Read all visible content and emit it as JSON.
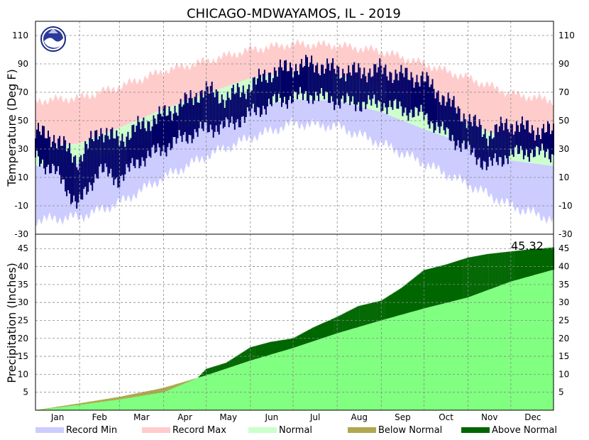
{
  "colors": {
    "record_min": "#ccccff",
    "record_max": "#ffcccc",
    "normal": "#ccffcc",
    "observed": "#000066",
    "precip_normal": "#80ff80",
    "below_normal": "#b0a850",
    "above_normal": "#006600"
  },
  "icons": {
    "logo": "noaa-logo-icon"
  },
  "chart_data": [
    {
      "type": "area",
      "title": "CHICAGO-MDWAYAMOS, IL - 2019",
      "ylabel": "Temperature (Deg F)",
      "ylim": [
        -30,
        120
      ],
      "yticks": [
        -30,
        -10,
        10,
        30,
        50,
        70,
        90,
        110
      ],
      "grid": true,
      "x_unit": "day_of_year",
      "xlim": [
        1,
        365
      ],
      "months": [
        "Jan",
        "Feb",
        "Mar",
        "Apr",
        "May",
        "Jun",
        "Jul",
        "Aug",
        "Sep",
        "Oct",
        "Nov",
        "Dec"
      ],
      "month_start_days": [
        1,
        32,
        60,
        91,
        121,
        152,
        182,
        213,
        244,
        274,
        305,
        335
      ],
      "series": [
        {
          "name": "Record Max",
          "x": [
            1,
            32,
            60,
            91,
            121,
            152,
            182,
            213,
            244,
            274,
            305,
            335,
            365
          ],
          "values": [
            64,
            66,
            74,
            85,
            92,
            100,
            104,
            103,
            99,
            90,
            80,
            69,
            64
          ]
        },
        {
          "name": "Record Min",
          "x": [
            1,
            32,
            60,
            91,
            121,
            152,
            182,
            213,
            244,
            274,
            305,
            335,
            365
          ],
          "values": [
            -20,
            -18,
            -8,
            10,
            25,
            38,
            48,
            46,
            34,
            20,
            5,
            -10,
            -20
          ]
        },
        {
          "name": "Normal",
          "high": {
            "x": [
              1,
              32,
              60,
              91,
              121,
              152,
              182,
              213,
              244,
              274,
              305,
              335,
              365
            ],
            "values": [
              31,
              34,
              45,
              58,
              69,
              80,
              84,
              82,
              75,
              62,
              48,
              36,
              31
            ]
          },
          "low": {
            "x": [
              1,
              32,
              60,
              91,
              121,
              152,
              182,
              213,
              244,
              274,
              305,
              335,
              365
            ],
            "values": [
              18,
              20,
              29,
              39,
              49,
              59,
              65,
              64,
              56,
              44,
              33,
              22,
              18
            ]
          }
        },
        {
          "name": "Observed",
          "high": {
            "x": [
              1,
              15,
              31,
              46,
              59,
              74,
              90,
              105,
              120,
              135,
              151,
              166,
              181,
              196,
              212,
              227,
              243,
              258,
              273,
              288,
              304,
              319,
              334,
              349,
              365
            ],
            "values": [
              42,
              38,
              22,
              44,
              36,
              46,
              54,
              62,
              72,
              66,
              74,
              84,
              88,
              90,
              86,
              84,
              86,
              82,
              80,
              66,
              52,
              40,
              48,
              44,
              42
            ]
          },
          "low": {
            "x": [
              1,
              15,
              31,
              46,
              59,
              74,
              90,
              105,
              120,
              135,
              151,
              166,
              181,
              196,
              212,
              227,
              243,
              258,
              273,
              288,
              304,
              319,
              334,
              349,
              365
            ],
            "values": [
              24,
              14,
              -10,
              16,
              8,
              22,
              30,
              38,
              44,
              46,
              54,
              62,
              66,
              68,
              64,
              62,
              62,
              58,
              54,
              42,
              30,
              18,
              26,
              28,
              26
            ]
          }
        }
      ]
    },
    {
      "type": "area",
      "ylabel": "Precipitation (Inches)",
      "ylim": [
        0,
        49
      ],
      "yticks": [
        5,
        10,
        15,
        20,
        25,
        30,
        35,
        40,
        45
      ],
      "grid": true,
      "x_unit": "day_of_year",
      "xlim": [
        1,
        365
      ],
      "annotation": "45.32",
      "series": [
        {
          "name": "Normal",
          "x": [
            1,
            32,
            60,
            91,
            121,
            152,
            182,
            213,
            244,
            274,
            305,
            335,
            365
          ],
          "values": [
            0,
            1.9,
            3.7,
            6.2,
            9.7,
            13.8,
            17.3,
            21.4,
            25.0,
            28.3,
            31.4,
            35.8,
            39.1
          ]
        },
        {
          "name": "Observed",
          "x": [
            1,
            32,
            60,
            91,
            115,
            121,
            135,
            152,
            166,
            182,
            196,
            213,
            228,
            244,
            258,
            274,
            289,
            305,
            319,
            335,
            349,
            365
          ],
          "values": [
            0,
            1.5,
            3.0,
            5.0,
            9.0,
            11.5,
            13.2,
            17.5,
            19.0,
            20.0,
            23.0,
            26.0,
            29.0,
            30.5,
            34.0,
            39.0,
            40.5,
            42.5,
            43.5,
            44.2,
            44.8,
            45.32
          ]
        }
      ]
    }
  ],
  "legend": [
    {
      "label": "Record Min",
      "color": "#ccccff"
    },
    {
      "label": "Record Max",
      "color": "#ffcccc"
    },
    {
      "label": "Normal",
      "color": "#ccffcc"
    },
    {
      "label": "Below Normal",
      "color": "#b0a850"
    },
    {
      "label": "Above Normal",
      "color": "#006600"
    }
  ]
}
